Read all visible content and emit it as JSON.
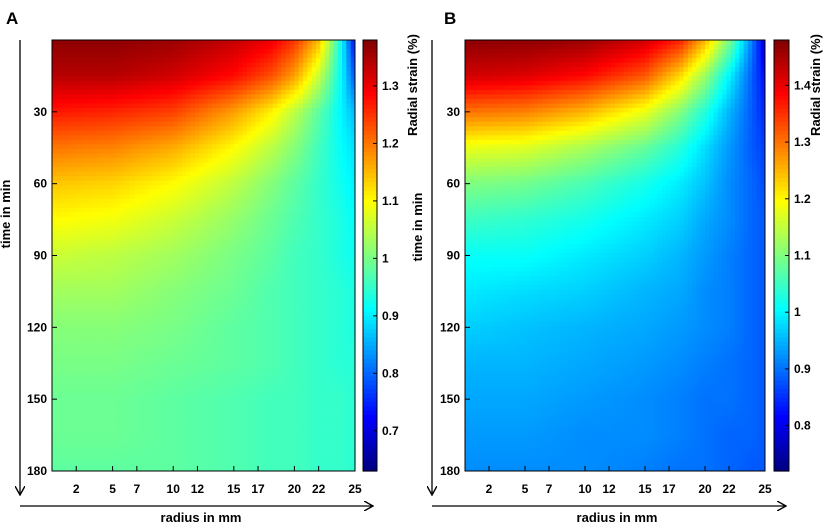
{
  "chart_data": [
    {
      "type": "heatmap",
      "panel_label": "A",
      "title": "",
      "xlabel": "radius in mm",
      "ylabel": "time in min",
      "colorbar_label": "Radial strain (%)",
      "x_ticks": [
        2,
        5,
        7,
        10,
        12,
        15,
        17,
        20,
        22,
        25
      ],
      "y_ticks": [
        30,
        60,
        90,
        120,
        150,
        180
      ],
      "xlim": [
        0,
        25
      ],
      "ylim": [
        0,
        180
      ],
      "y_axis_inverted": true,
      "colorbar_ticks": [
        0.7,
        0.8,
        0.9,
        1,
        1.1,
        1.2,
        1.3
      ],
      "colorbar_range": [
        0.63,
        1.38
      ],
      "colormap": "jet",
      "rows_time_min": [
        0,
        15,
        30,
        45,
        60,
        75,
        90,
        105,
        120,
        135,
        150,
        165,
        180
      ],
      "cols_radius_mm": [
        0,
        5,
        10,
        15,
        18,
        20,
        22,
        24,
        25
      ],
      "values": [
        [
          1.37,
          1.37,
          1.36,
          1.33,
          1.3,
          1.25,
          1.15,
          0.9,
          0.72
        ],
        [
          1.34,
          1.34,
          1.32,
          1.28,
          1.23,
          1.17,
          1.06,
          0.9,
          0.78
        ],
        [
          1.27,
          1.26,
          1.24,
          1.17,
          1.11,
          1.05,
          0.98,
          0.9,
          0.86
        ],
        [
          1.2,
          1.19,
          1.16,
          1.1,
          1.05,
          1.01,
          0.96,
          0.91,
          0.89
        ],
        [
          1.14,
          1.13,
          1.1,
          1.05,
          1.01,
          0.98,
          0.95,
          0.92,
          0.9
        ],
        [
          1.1,
          1.09,
          1.06,
          1.02,
          0.99,
          0.97,
          0.95,
          0.93,
          0.91
        ],
        [
          1.06,
          1.05,
          1.03,
          1.0,
          0.98,
          0.96,
          0.95,
          0.93,
          0.92
        ],
        [
          1.03,
          1.03,
          1.01,
          0.99,
          0.97,
          0.96,
          0.95,
          0.94,
          0.93
        ],
        [
          1.01,
          1.01,
          1.0,
          0.98,
          0.97,
          0.96,
          0.95,
          0.94,
          0.93
        ],
        [
          1.0,
          1.0,
          0.99,
          0.98,
          0.97,
          0.96,
          0.95,
          0.94,
          0.94
        ],
        [
          0.99,
          0.99,
          0.98,
          0.97,
          0.96,
          0.96,
          0.95,
          0.95,
          0.94
        ],
        [
          0.99,
          0.99,
          0.98,
          0.97,
          0.96,
          0.96,
          0.95,
          0.95,
          0.94
        ],
        [
          0.98,
          0.98,
          0.98,
          0.97,
          0.96,
          0.96,
          0.95,
          0.95,
          0.94
        ]
      ]
    },
    {
      "type": "heatmap",
      "panel_label": "B",
      "title": "",
      "xlabel": "radius in mm",
      "ylabel": "time in min",
      "colorbar_label": "Radial strain (%)",
      "x_ticks": [
        2,
        5,
        7,
        10,
        12,
        15,
        17,
        20,
        22,
        25
      ],
      "y_ticks": [
        30,
        60,
        90,
        120,
        150,
        180
      ],
      "xlim": [
        0,
        25
      ],
      "ylim": [
        0,
        180
      ],
      "y_axis_inverted": true,
      "colorbar_ticks": [
        0.8,
        0.9,
        1,
        1.1,
        1.2,
        1.3,
        1.4
      ],
      "colorbar_range": [
        0.72,
        1.48
      ],
      "colormap": "jet",
      "rows_time_min": [
        0,
        15,
        30,
        45,
        60,
        75,
        90,
        105,
        120,
        135,
        150,
        165,
        180
      ],
      "cols_radius_mm": [
        0,
        5,
        10,
        15,
        18,
        20,
        22,
        24,
        25
      ],
      "values": [
        [
          1.47,
          1.47,
          1.46,
          1.42,
          1.36,
          1.25,
          1.1,
          0.9,
          0.78
        ],
        [
          1.42,
          1.41,
          1.38,
          1.32,
          1.22,
          1.12,
          1.0,
          0.88,
          0.82
        ],
        [
          1.3,
          1.29,
          1.25,
          1.18,
          1.1,
          1.03,
          0.95,
          0.88,
          0.84
        ],
        [
          1.18,
          1.17,
          1.13,
          1.08,
          1.03,
          0.98,
          0.93,
          0.88,
          0.86
        ],
        [
          1.1,
          1.09,
          1.06,
          1.02,
          0.99,
          0.96,
          0.92,
          0.89,
          0.87
        ],
        [
          1.05,
          1.04,
          1.02,
          0.99,
          0.97,
          0.94,
          0.92,
          0.89,
          0.88
        ],
        [
          1.01,
          1.01,
          0.99,
          0.97,
          0.95,
          0.93,
          0.91,
          0.89,
          0.88
        ],
        [
          0.99,
          0.98,
          0.97,
          0.95,
          0.94,
          0.92,
          0.91,
          0.89,
          0.88
        ],
        [
          0.97,
          0.96,
          0.95,
          0.94,
          0.93,
          0.92,
          0.91,
          0.89,
          0.88
        ],
        [
          0.95,
          0.95,
          0.94,
          0.93,
          0.92,
          0.91,
          0.9,
          0.89,
          0.88
        ],
        [
          0.94,
          0.94,
          0.93,
          0.92,
          0.91,
          0.9,
          0.9,
          0.89,
          0.88
        ],
        [
          0.93,
          0.93,
          0.92,
          0.92,
          0.91,
          0.9,
          0.89,
          0.89,
          0.88
        ],
        [
          0.92,
          0.92,
          0.92,
          0.91,
          0.9,
          0.9,
          0.89,
          0.88,
          0.88
        ]
      ]
    }
  ]
}
